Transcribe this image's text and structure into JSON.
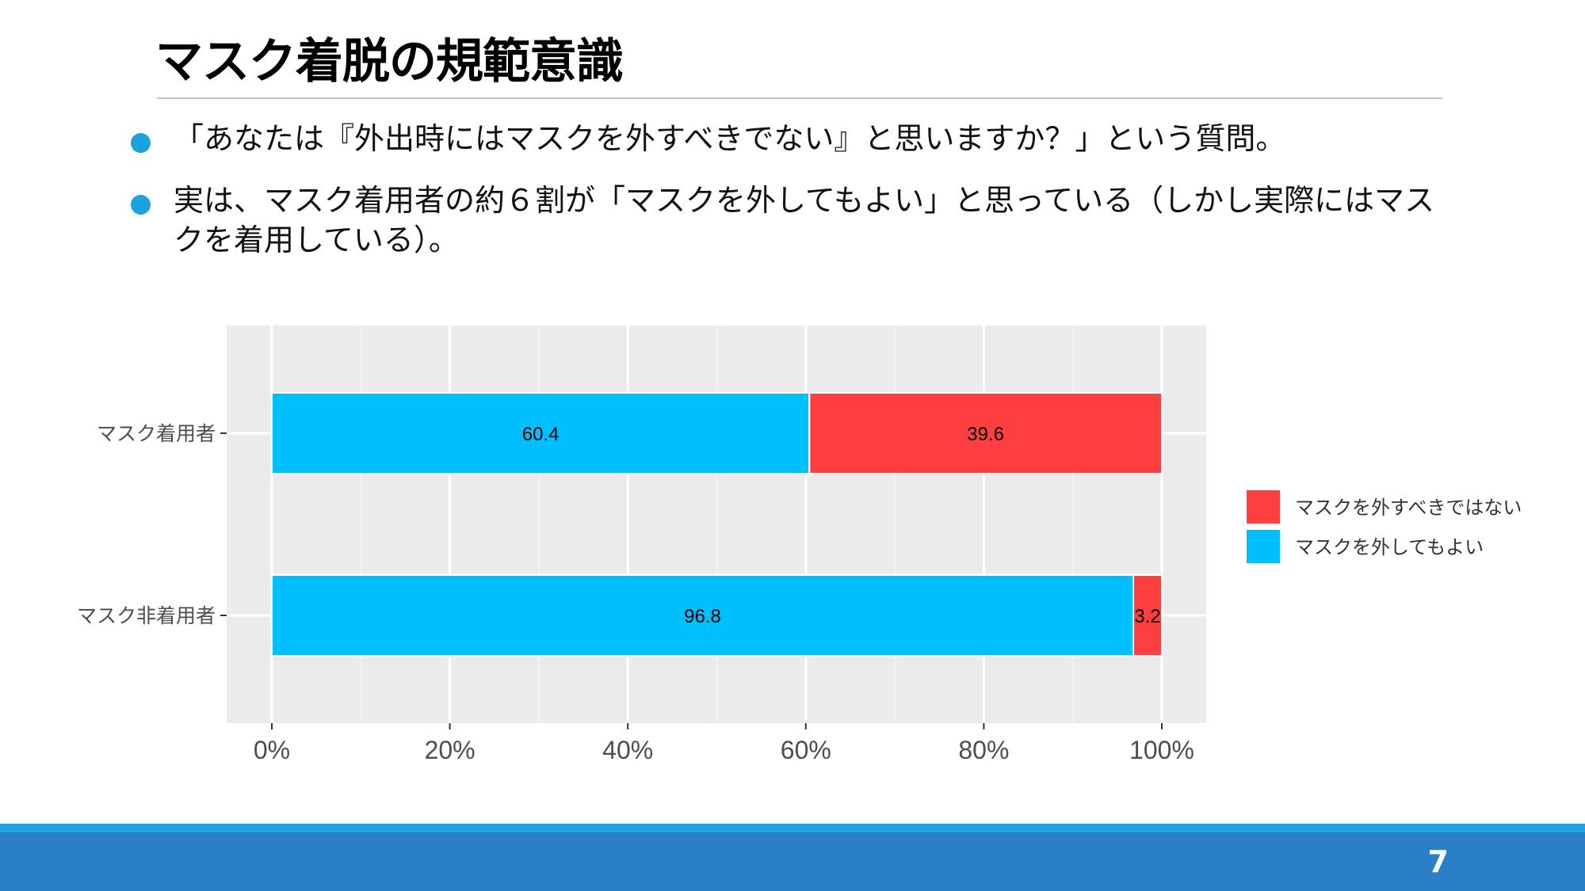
{
  "slide": {
    "title": "マスク着脱の規範意識",
    "bullets": [
      "「あなたは『外出時にはマスクを外すべきでない』と思いますか？」という質問。",
      "実は、マスク着用者の約６割が「マスクを外してもよい」と思っている（しかし実際にはマスクを着用している）。"
    ],
    "page_number": "7"
  },
  "colors": {
    "panel": "#ebebeb",
    "grid_major": "#ffffff",
    "grid_minor": "#f5f5f5",
    "ok_series": "#00bfff",
    "not_ok_series": "#ff3f3f",
    "footer": "#2a80c4",
    "footer_strip": "#1ea3e0",
    "bullet_dot": "#1aa3e0"
  },
  "chart_data": {
    "type": "bar",
    "orientation": "horizontal",
    "stacked": true,
    "categories": [
      "マスク着用者",
      "マスク非着用者"
    ],
    "series": [
      {
        "name": "マスクを外してもよい",
        "values": [
          60.4,
          96.8
        ]
      },
      {
        "name": "マスクを外すべきではない",
        "values": [
          39.6,
          3.2
        ]
      }
    ],
    "x_ticks": [
      "0%",
      "20%",
      "40%",
      "60%",
      "80%",
      "100%"
    ],
    "x_range": [
      0,
      100
    ],
    "grid": true,
    "legend_placement": "right",
    "legend_order": [
      "マスクを外すべきではない",
      "マスクを外してもよい"
    ]
  }
}
